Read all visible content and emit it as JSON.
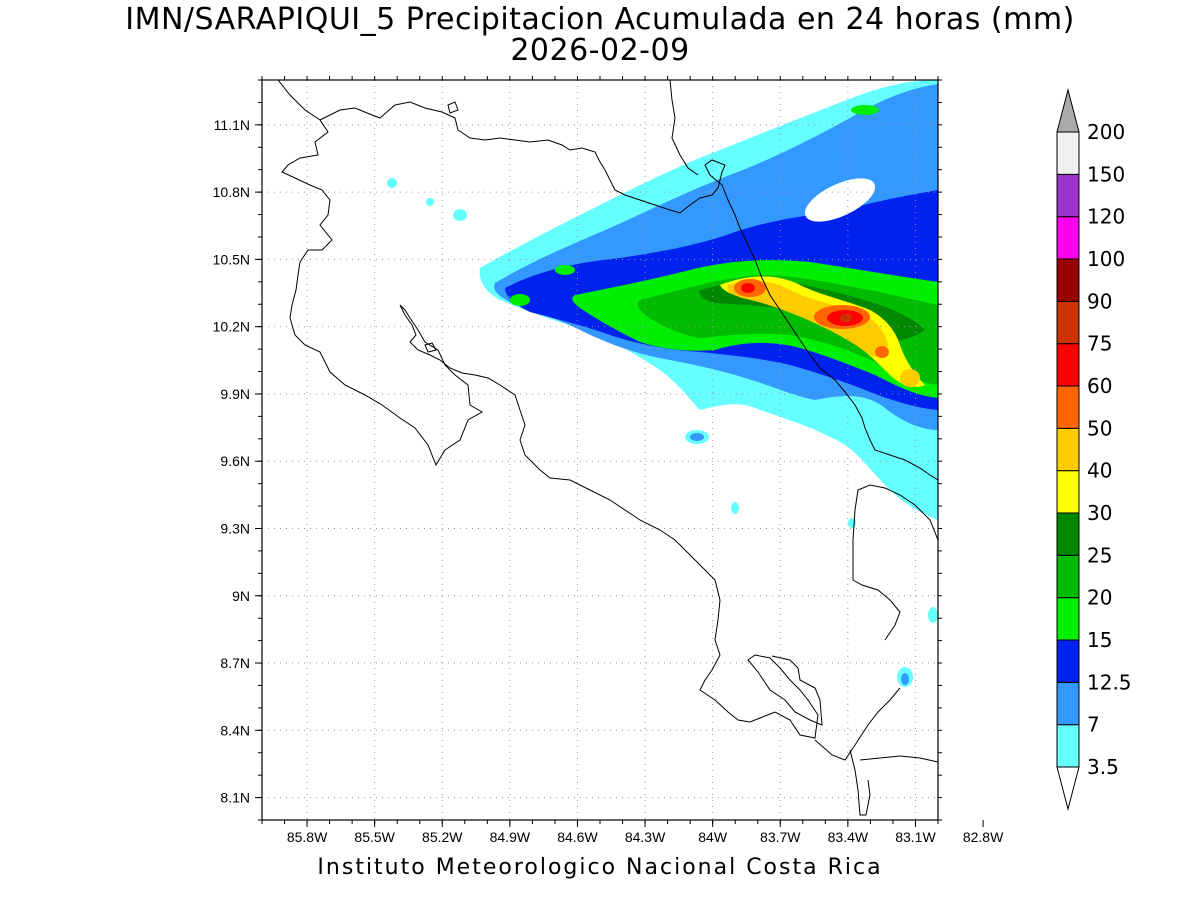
{
  "title": {
    "line1": "IMN/SARAPIQUI_5 Precipitacion Acumulada en 24 horas (mm)",
    "line2": "2026-02-09"
  },
  "footer": "Instituto Meteorologico Nacional Costa Rica",
  "map": {
    "lon_range": [
      -86.0,
      -83.0
    ],
    "lat_range": [
      8.0,
      11.3
    ],
    "lon_ticks": [
      {
        "value": -85.8,
        "label": "85.8W"
      },
      {
        "value": -85.5,
        "label": "85.5W"
      },
      {
        "value": -85.2,
        "label": "85.2W"
      },
      {
        "value": -84.9,
        "label": "84.9W"
      },
      {
        "value": -84.6,
        "label": "84.6W"
      },
      {
        "value": -84.3,
        "label": "84.3W"
      },
      {
        "value": -84.0,
        "label": "84W"
      },
      {
        "value": -83.7,
        "label": "83.7W"
      },
      {
        "value": -83.4,
        "label": "83.4W"
      },
      {
        "value": -83.1,
        "label": "83.1W"
      },
      {
        "value": -82.8,
        "label": "82.8W"
      }
    ],
    "lat_ticks": [
      {
        "value": 11.1,
        "label": "11.1N"
      },
      {
        "value": 10.8,
        "label": "10.8N"
      },
      {
        "value": 10.5,
        "label": "10.5N"
      },
      {
        "value": 10.2,
        "label": "10.2N"
      },
      {
        "value": 9.9,
        "label": "9.9N"
      },
      {
        "value": 9.6,
        "label": "9.6N"
      },
      {
        "value": 9.3,
        "label": "9.3N"
      },
      {
        "value": 9.0,
        "label": "9N"
      },
      {
        "value": 8.7,
        "label": "8.7N"
      },
      {
        "value": 8.4,
        "label": "8.4N"
      },
      {
        "value": 8.1,
        "label": "8.1N"
      }
    ],
    "grid": true
  },
  "legend": {
    "levels": [
      "3.5",
      "7",
      "12.5",
      "15",
      "20",
      "25",
      "30",
      "40",
      "50",
      "60",
      "75",
      "90",
      "100",
      "120",
      "150",
      "200"
    ],
    "colors": [
      "#66ffff",
      "#3399ff",
      "#0022ee",
      "#00ee00",
      "#00bb00",
      "#008800",
      "#ffff00",
      "#ffcc00",
      "#ff6600",
      "#ff0000",
      "#cc3300",
      "#990000",
      "#ff00ee",
      "#9933cc",
      "#f0f0f0",
      "#aaaaaa"
    ],
    "under_color": "#ffffff",
    "over_color": "#aaaaaa"
  }
}
